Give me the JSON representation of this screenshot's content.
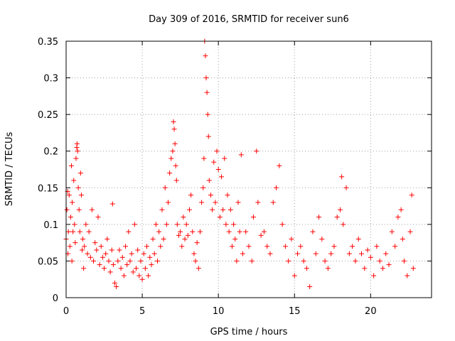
{
  "chart_data": {
    "type": "scatter",
    "title": "Day 309 of 2016, SRMTID for receiver sun6",
    "xlabel": "GPS time / hours",
    "ylabel": "SRMTID / TECUs",
    "xlim": [
      0,
      24
    ],
    "ylim": [
      0,
      0.35
    ],
    "xticks": [
      0,
      5,
      10,
      15,
      20
    ],
    "xtick_labels": [
      "0",
      "5",
      "10",
      "15",
      "20"
    ],
    "yticks": [
      0,
      0.05,
      0.1,
      0.15,
      0.2,
      0.25,
      0.3,
      0.35
    ],
    "ytick_labels": [
      "0",
      "0.05",
      "0.1",
      "0.15",
      "0.2",
      "0.25",
      "0.3",
      "0.35"
    ],
    "grid": true,
    "marker": "+",
    "color": "#ff0000",
    "series": [
      {
        "name": "SRMTID",
        "points": [
          [
            0.0,
            0.08
          ],
          [
            0.05,
            0.12
          ],
          [
            0.1,
            0.145
          ],
          [
            0.12,
            0.06
          ],
          [
            0.15,
            0.09
          ],
          [
            0.2,
            0.14
          ],
          [
            0.25,
            0.07
          ],
          [
            0.3,
            0.11
          ],
          [
            0.35,
            0.18
          ],
          [
            0.38,
            0.05
          ],
          [
            0.4,
            0.13
          ],
          [
            0.45,
            0.09
          ],
          [
            0.5,
            0.16
          ],
          [
            0.55,
            0.1
          ],
          [
            0.6,
            0.075
          ],
          [
            0.65,
            0.19
          ],
          [
            0.7,
            0.205
          ],
          [
            0.72,
            0.21
          ],
          [
            0.75,
            0.2
          ],
          [
            0.8,
            0.15
          ],
          [
            0.85,
            0.12
          ],
          [
            0.9,
            0.09
          ],
          [
            0.95,
            0.17
          ],
          [
            1.0,
            0.14
          ],
          [
            1.05,
            0.065
          ],
          [
            1.1,
            0.08
          ],
          [
            1.15,
            0.04
          ],
          [
            1.2,
            0.07
          ],
          [
            1.3,
            0.1
          ],
          [
            1.4,
            0.06
          ],
          [
            1.5,
            0.09
          ],
          [
            1.6,
            0.055
          ],
          [
            1.7,
            0.12
          ],
          [
            1.8,
            0.05
          ],
          [
            1.9,
            0.075
          ],
          [
            2.0,
            0.065
          ],
          [
            2.1,
            0.11
          ],
          [
            2.2,
            0.045
          ],
          [
            2.3,
            0.07
          ],
          [
            2.4,
            0.055
          ],
          [
            2.5,
            0.04
          ],
          [
            2.6,
            0.06
          ],
          [
            2.7,
            0.08
          ],
          [
            2.8,
            0.05
          ],
          [
            2.9,
            0.035
          ],
          [
            3.0,
            0.065
          ],
          [
            3.05,
            0.128
          ],
          [
            3.1,
            0.045
          ],
          [
            3.2,
            0.02
          ],
          [
            3.3,
            0.015
          ],
          [
            3.4,
            0.05
          ],
          [
            3.5,
            0.065
          ],
          [
            3.6,
            0.04
          ],
          [
            3.7,
            0.055
          ],
          [
            3.8,
            0.03
          ],
          [
            3.9,
            0.07
          ],
          [
            4.0,
            0.045
          ],
          [
            4.1,
            0.09
          ],
          [
            4.2,
            0.05
          ],
          [
            4.3,
            0.06
          ],
          [
            4.4,
            0.035
          ],
          [
            4.5,
            0.1
          ],
          [
            4.6,
            0.04
          ],
          [
            4.7,
            0.065
          ],
          [
            4.8,
            0.03
          ],
          [
            4.9,
            0.05
          ],
          [
            5.0,
            0.025
          ],
          [
            5.1,
            0.06
          ],
          [
            5.2,
            0.04
          ],
          [
            5.3,
            0.07
          ],
          [
            5.4,
            0.03
          ],
          [
            5.5,
            0.055
          ],
          [
            5.6,
            0.045
          ],
          [
            5.7,
            0.08
          ],
          [
            5.8,
            0.06
          ],
          [
            5.9,
            0.1
          ],
          [
            6.0,
            0.05
          ],
          [
            6.1,
            0.09
          ],
          [
            6.2,
            0.07
          ],
          [
            6.3,
            0.12
          ],
          [
            6.4,
            0.08
          ],
          [
            6.5,
            0.15
          ],
          [
            6.6,
            0.1
          ],
          [
            6.7,
            0.13
          ],
          [
            6.8,
            0.17
          ],
          [
            6.9,
            0.19
          ],
          [
            7.0,
            0.2
          ],
          [
            7.05,
            0.24
          ],
          [
            7.1,
            0.23
          ],
          [
            7.15,
            0.21
          ],
          [
            7.2,
            0.18
          ],
          [
            7.25,
            0.16
          ],
          [
            7.3,
            0.1
          ],
          [
            7.4,
            0.085
          ],
          [
            7.5,
            0.09
          ],
          [
            7.6,
            0.07
          ],
          [
            7.7,
            0.11
          ],
          [
            7.8,
            0.08
          ],
          [
            7.9,
            0.1
          ],
          [
            8.0,
            0.085
          ],
          [
            8.1,
            0.12
          ],
          [
            8.2,
            0.14
          ],
          [
            8.3,
            0.09
          ],
          [
            8.4,
            0.06
          ],
          [
            8.5,
            0.05
          ],
          [
            8.6,
            0.075
          ],
          [
            8.7,
            0.04
          ],
          [
            8.8,
            0.09
          ],
          [
            8.9,
            0.13
          ],
          [
            9.0,
            0.15
          ],
          [
            9.05,
            0.19
          ],
          [
            9.1,
            0.35
          ],
          [
            9.15,
            0.33
          ],
          [
            9.2,
            0.3
          ],
          [
            9.25,
            0.28
          ],
          [
            9.3,
            0.25
          ],
          [
            9.35,
            0.22
          ],
          [
            9.4,
            0.16
          ],
          [
            9.5,
            0.14
          ],
          [
            9.6,
            0.12
          ],
          [
            9.7,
            0.185
          ],
          [
            9.8,
            0.13
          ],
          [
            9.9,
            0.2
          ],
          [
            10.0,
            0.175
          ],
          [
            10.1,
            0.11
          ],
          [
            10.2,
            0.165
          ],
          [
            10.3,
            0.12
          ],
          [
            10.4,
            0.19
          ],
          [
            10.5,
            0.1
          ],
          [
            10.6,
            0.14
          ],
          [
            10.7,
            0.09
          ],
          [
            10.8,
            0.12
          ],
          [
            10.9,
            0.07
          ],
          [
            11.0,
            0.1
          ],
          [
            11.1,
            0.08
          ],
          [
            11.2,
            0.05
          ],
          [
            11.3,
            0.13
          ],
          [
            11.4,
            0.09
          ],
          [
            11.5,
            0.195
          ],
          [
            11.6,
            0.06
          ],
          [
            11.8,
            0.09
          ],
          [
            12.0,
            0.07
          ],
          [
            12.2,
            0.05
          ],
          [
            12.3,
            0.11
          ],
          [
            12.5,
            0.2
          ],
          [
            12.6,
            0.13
          ],
          [
            12.8,
            0.085
          ],
          [
            13.0,
            0.09
          ],
          [
            13.2,
            0.07
          ],
          [
            13.4,
            0.06
          ],
          [
            13.6,
            0.13
          ],
          [
            13.8,
            0.15
          ],
          [
            14.0,
            0.18
          ],
          [
            14.2,
            0.1
          ],
          [
            14.4,
            0.07
          ],
          [
            14.6,
            0.05
          ],
          [
            14.8,
            0.08
          ],
          [
            15.0,
            0.03
          ],
          [
            15.2,
            0.06
          ],
          [
            15.4,
            0.07
          ],
          [
            15.6,
            0.05
          ],
          [
            15.8,
            0.04
          ],
          [
            16.0,
            0.015
          ],
          [
            16.2,
            0.09
          ],
          [
            16.4,
            0.06
          ],
          [
            16.6,
            0.11
          ],
          [
            16.8,
            0.08
          ],
          [
            17.0,
            0.05
          ],
          [
            17.2,
            0.04
          ],
          [
            17.4,
            0.06
          ],
          [
            17.6,
            0.07
          ],
          [
            17.8,
            0.11
          ],
          [
            18.0,
            0.12
          ],
          [
            18.1,
            0.165
          ],
          [
            18.2,
            0.1
          ],
          [
            18.4,
            0.15
          ],
          [
            18.6,
            0.06
          ],
          [
            18.8,
            0.07
          ],
          [
            19.0,
            0.05
          ],
          [
            19.2,
            0.08
          ],
          [
            19.4,
            0.06
          ],
          [
            19.6,
            0.04
          ],
          [
            19.8,
            0.065
          ],
          [
            20.0,
            0.055
          ],
          [
            20.2,
            0.03
          ],
          [
            20.4,
            0.07
          ],
          [
            20.6,
            0.05
          ],
          [
            20.8,
            0.04
          ],
          [
            21.0,
            0.06
          ],
          [
            21.2,
            0.045
          ],
          [
            21.4,
            0.09
          ],
          [
            21.6,
            0.07
          ],
          [
            21.8,
            0.11
          ],
          [
            22.0,
            0.12
          ],
          [
            22.1,
            0.08
          ],
          [
            22.2,
            0.05
          ],
          [
            22.4,
            0.03
          ],
          [
            22.6,
            0.09
          ],
          [
            22.7,
            0.14
          ],
          [
            22.8,
            0.04
          ]
        ]
      }
    ]
  }
}
